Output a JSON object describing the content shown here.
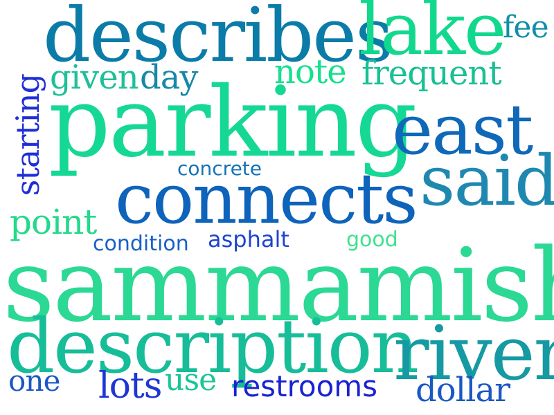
{
  "words": [
    {
      "text": "describes",
      "color": "#0b7ca8"
    },
    {
      "text": "lake",
      "color": "#12d88e"
    },
    {
      "text": "fee",
      "color": "#108fa6"
    },
    {
      "text": "given",
      "color": "#1fbf98"
    },
    {
      "text": "day",
      "color": "#1688a6"
    },
    {
      "text": "note",
      "color": "#14e08e"
    },
    {
      "text": "frequent",
      "color": "#18c093"
    },
    {
      "text": "starting",
      "color": "#1f2fd6"
    },
    {
      "text": "parking",
      "color": "#15d894"
    },
    {
      "text": "east",
      "color": "#0f68b8"
    },
    {
      "text": "concrete",
      "color": "#1574b5"
    },
    {
      "text": "connects",
      "color": "#0e63bb"
    },
    {
      "text": "said",
      "color": "#1f88b0"
    },
    {
      "text": "point",
      "color": "#25d98b"
    },
    {
      "text": "condition",
      "color": "#1860c4"
    },
    {
      "text": "asphalt",
      "color": "#1c44cc"
    },
    {
      "text": "good",
      "color": "#3fe28c"
    },
    {
      "text": "sammamish",
      "color": "#2bd894"
    },
    {
      "text": "description",
      "color": "#16bd98"
    },
    {
      "text": "river",
      "color": "#159aa3"
    },
    {
      "text": "one",
      "color": "#1c57c6"
    },
    {
      "text": "lots",
      "color": "#1f36d2"
    },
    {
      "text": "use",
      "color": "#18c698"
    },
    {
      "text": "restrooms",
      "color": "#1a22d2"
    },
    {
      "text": "dollar",
      "color": "#1b58c4"
    }
  ]
}
